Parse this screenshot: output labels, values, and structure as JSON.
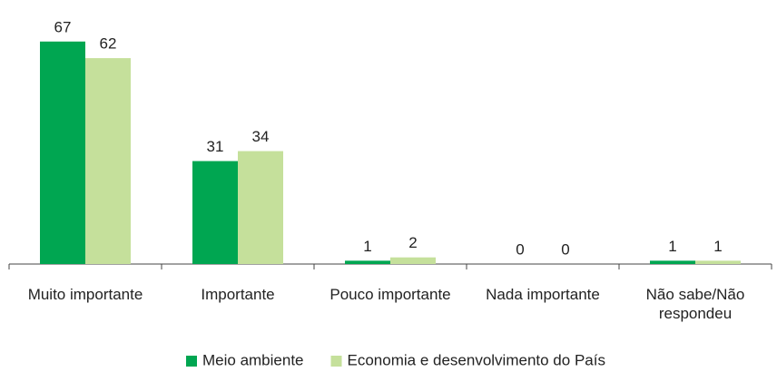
{
  "chart_data": {
    "type": "bar",
    "categories": [
      "Muito importante",
      "Importante",
      "Pouco importante",
      "Nada importante",
      "Não sabe/Não respondeu"
    ],
    "series": [
      {
        "name": "Meio ambiente",
        "color": "#00a651",
        "values": [
          67,
          31,
          1,
          0,
          1
        ]
      },
      {
        "name": "Economia e desenvolvimento do País",
        "color": "#c5e09b",
        "values": [
          62,
          34,
          2,
          0,
          1
        ]
      }
    ],
    "legend": "bottom"
  }
}
